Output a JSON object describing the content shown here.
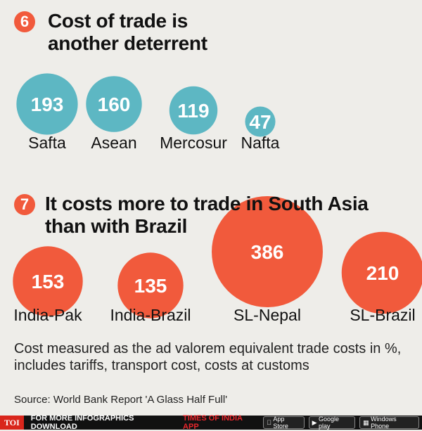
{
  "section6": {
    "number": "6",
    "title_line1": "Cost of trade is",
    "title_line2": "another deterrent"
  },
  "section7": {
    "number": "7",
    "title_line1": "It costs more to trade in South Asia",
    "title_line2": "than with Brazil"
  },
  "chart_data": [
    {
      "type": "bubble",
      "categories": [
        "Safta",
        "Asean",
        "Mercosur",
        "Nafta"
      ],
      "values": [
        193,
        160,
        119,
        47
      ],
      "color": "#5db7c3"
    },
    {
      "type": "bubble",
      "categories": [
        "India-Pak",
        "India-Brazil",
        "SL-Nepal",
        "SL-Brazil"
      ],
      "values": [
        153,
        135,
        386,
        210
      ],
      "color": "#f15a3c"
    }
  ],
  "note": "Cost measured as the ad valorem equivalent trade costs in %, includes tariffs, transport cost, costs at customs",
  "source": "Source: World Bank Report 'A Glass Half Full'",
  "footer": {
    "logo": "TOI",
    "text": "FOR MORE  INFOGRAPHICS DOWNLOAD",
    "app": "TIMES OF INDIA  APP",
    "store1": "App Store",
    "store2": "Google play",
    "store3": "Windows Phone"
  },
  "colors": {
    "teal": "#5db7c3",
    "red": "#f15a3c",
    "background": "#eeede9"
  }
}
